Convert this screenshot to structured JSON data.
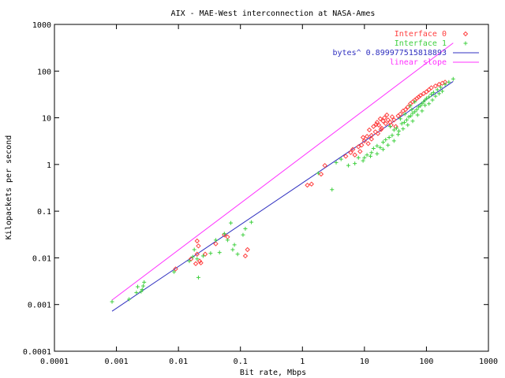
{
  "chart_data": {
    "type": "scatter",
    "title": "AIX - MAE-West interconnection at NASA-Ames",
    "xlabel": "Bit rate, Mbps",
    "ylabel": "Kilopackets per second",
    "xscale": "log",
    "yscale": "log",
    "xlim": [
      0.0001,
      1000
    ],
    "ylim": [
      0.0001,
      1000
    ],
    "grid": false,
    "legend_position": "top-right",
    "x_ticks": [
      {
        "value": 0.0001,
        "label": "0.0001"
      },
      {
        "value": 0.001,
        "label": "0.001"
      },
      {
        "value": 0.01,
        "label": "0.01"
      },
      {
        "value": 0.1,
        "label": "0.1"
      },
      {
        "value": 1,
        "label": "1"
      },
      {
        "value": 10,
        "label": "10"
      },
      {
        "value": 100,
        "label": "100"
      },
      {
        "value": 1000,
        "label": "1000"
      }
    ],
    "y_ticks": [
      {
        "value": 0.0001,
        "label": "0.0001"
      },
      {
        "value": 0.001,
        "label": "0.001"
      },
      {
        "value": 0.01,
        "label": "0.01"
      },
      {
        "value": 0.1,
        "label": "0.1"
      },
      {
        "value": 1,
        "label": "1"
      },
      {
        "value": 10,
        "label": "10"
      },
      {
        "value": 100,
        "label": "100"
      },
      {
        "value": 1000,
        "label": "1000"
      }
    ],
    "series": [
      {
        "name": "Interface 0",
        "kind": "points",
        "marker": "diamond",
        "color": "#ff4040",
        "points": [
          [
            0.009,
            0.0058
          ],
          [
            0.016,
            0.0095
          ],
          [
            0.019,
            0.0075
          ],
          [
            0.02,
            0.012
          ],
          [
            0.021,
            0.018
          ],
          [
            0.022,
            0.0085
          ],
          [
            0.023,
            0.0078
          ],
          [
            0.02,
            0.023
          ],
          [
            0.027,
            0.012
          ],
          [
            0.04,
            0.02
          ],
          [
            0.055,
            0.031
          ],
          [
            0.062,
            0.028
          ],
          [
            0.12,
            0.011
          ],
          [
            0.13,
            0.015
          ],
          [
            1.2,
            0.36
          ],
          [
            1.4,
            0.38
          ],
          [
            2.0,
            0.62
          ],
          [
            2.3,
            0.95
          ],
          [
            5.0,
            1.5
          ],
          [
            6.0,
            1.8
          ],
          [
            7.0,
            1.6
          ],
          [
            8.0,
            2.4
          ],
          [
            9.0,
            2.6
          ],
          [
            10.0,
            3.2
          ],
          [
            11.0,
            4.0
          ],
          [
            12.0,
            5.5
          ],
          [
            13.0,
            4.2
          ],
          [
            14.0,
            6.5
          ],
          [
            15.0,
            5.0
          ],
          [
            16.0,
            8.0
          ],
          [
            17.0,
            7.0
          ],
          [
            18.0,
            9.5
          ],
          [
            19.0,
            6.0
          ],
          [
            20.0,
            8.5
          ],
          [
            21.0,
            10.0
          ],
          [
            22.0,
            7.5
          ],
          [
            24.0,
            9.0
          ],
          [
            26.0,
            8.0
          ],
          [
            28.0,
            10.5
          ],
          [
            30.0,
            9.0
          ],
          [
            32.0,
            6.5
          ],
          [
            35.0,
            11.0
          ],
          [
            38.0,
            12.0
          ],
          [
            42.0,
            14.0
          ],
          [
            46.0,
            15.0
          ],
          [
            50.0,
            17.0
          ],
          [
            55.0,
            20.0
          ],
          [
            60.0,
            22.0
          ],
          [
            65.0,
            24.0
          ],
          [
            70.0,
            26.0
          ],
          [
            75.0,
            28.0
          ],
          [
            80.0,
            30.0
          ],
          [
            90.0,
            33.0
          ],
          [
            100.0,
            36.0
          ],
          [
            110.0,
            40.0
          ],
          [
            120.0,
            44.0
          ],
          [
            140.0,
            48.0
          ],
          [
            160.0,
            52.0
          ],
          [
            180.0,
            55.0
          ],
          [
            200.0,
            58.0
          ],
          [
            13.0,
            3.5
          ],
          [
            15.5,
            7.2
          ],
          [
            18.5,
            5.6
          ],
          [
            23.0,
            11.5
          ],
          [
            27.0,
            7.0
          ],
          [
            11.5,
            2.8
          ],
          [
            9.5,
            3.8
          ],
          [
            8.5,
            1.9
          ],
          [
            6.5,
            2.1
          ],
          [
            16.5,
            4.6
          ]
        ]
      },
      {
        "name": "Interface 1",
        "kind": "points",
        "marker": "plus",
        "color": "#40d040",
        "points": [
          [
            0.00085,
            0.00115
          ],
          [
            0.0016,
            0.0013
          ],
          [
            0.0021,
            0.0018
          ],
          [
            0.0022,
            0.0024
          ],
          [
            0.0025,
            0.0019
          ],
          [
            0.0027,
            0.0025
          ],
          [
            0.0028,
            0.003
          ],
          [
            0.0026,
            0.0021
          ],
          [
            0.0085,
            0.005
          ],
          [
            0.015,
            0.0085
          ],
          [
            0.017,
            0.0105
          ],
          [
            0.018,
            0.015
          ],
          [
            0.02,
            0.0095
          ],
          [
            0.021,
            0.0038
          ],
          [
            0.025,
            0.011
          ],
          [
            0.033,
            0.0125
          ],
          [
            0.04,
            0.024
          ],
          [
            0.046,
            0.013
          ],
          [
            0.055,
            0.033
          ],
          [
            0.062,
            0.024
          ],
          [
            0.07,
            0.056
          ],
          [
            0.08,
            0.019
          ],
          [
            0.09,
            0.012
          ],
          [
            0.11,
            0.031
          ],
          [
            0.12,
            0.042
          ],
          [
            0.15,
            0.058
          ],
          [
            0.075,
            0.015
          ],
          [
            1.8,
            0.65
          ],
          [
            3.0,
            0.29
          ],
          [
            3.5,
            1.1
          ],
          [
            4.2,
            1.3
          ],
          [
            5.5,
            0.95
          ],
          [
            7.0,
            1.05
          ],
          [
            8.0,
            1.4
          ],
          [
            9.5,
            1.2
          ],
          [
            11.0,
            1.6
          ],
          [
            12.5,
            1.5
          ],
          [
            14.0,
            2.2
          ],
          [
            16.0,
            2.5
          ],
          [
            18.0,
            2.3
          ],
          [
            20.0,
            3.0
          ],
          [
            22.0,
            3.4
          ],
          [
            25.0,
            3.8
          ],
          [
            28.0,
            4.2
          ],
          [
            30.0,
            5.5
          ],
          [
            33.0,
            6.0
          ],
          [
            36.0,
            5.2
          ],
          [
            40.0,
            7.5
          ],
          [
            44.0,
            8.0
          ],
          [
            48.0,
            9.0
          ],
          [
            52.0,
            10.5
          ],
          [
            56.0,
            11.0
          ],
          [
            60.0,
            12.5
          ],
          [
            65.0,
            13.5
          ],
          [
            70.0,
            15.0
          ],
          [
            75.0,
            17.0
          ],
          [
            80.0,
            18.0
          ],
          [
            85.0,
            20.0
          ],
          [
            90.0,
            22.0
          ],
          [
            95.0,
            24.0
          ],
          [
            100.0,
            26.0
          ],
          [
            110.0,
            28.0
          ],
          [
            120.0,
            32.0
          ],
          [
            130.0,
            35.0
          ],
          [
            150.0,
            40.0
          ],
          [
            170.0,
            45.0
          ],
          [
            200.0,
            52.0
          ],
          [
            230.0,
            58.0
          ],
          [
            270.0,
            68.0
          ],
          [
            45.0,
            12.0
          ],
          [
            55.0,
            18.0
          ],
          [
            65.0,
            22.0
          ],
          [
            38.0,
            9.5
          ],
          [
            26.0,
            6.5
          ],
          [
            30.0,
            3.2
          ],
          [
            35.0,
            4.4
          ],
          [
            42.0,
            5.8
          ],
          [
            50.0,
            7.0
          ],
          [
            60.0,
            8.5
          ],
          [
            58.0,
            15.0
          ],
          [
            72.0,
            11.5
          ],
          [
            85.0,
            14.0
          ],
          [
            95.0,
            18.5
          ],
          [
            110.0,
            20.0
          ],
          [
            125.0,
            24.0
          ],
          [
            140.0,
            29.0
          ],
          [
            160.0,
            33.0
          ],
          [
            180.0,
            37.0
          ],
          [
            16.0,
            1.7
          ],
          [
            20.0,
            2.1
          ],
          [
            24.0,
            2.6
          ],
          [
            10.0,
            1.4
          ],
          [
            13.0,
            1.8
          ]
        ]
      },
      {
        "name": "bytes^ 0.899977515818893",
        "kind": "line",
        "color": "#3030c0",
        "function": "power",
        "exponent": 0.899977515818893,
        "x_range": [
          0.00085,
          270
        ],
        "endpoints": [
          [
            0.00085,
            0.00072
          ],
          [
            270,
            60
          ]
        ]
      },
      {
        "name": "linear slope",
        "kind": "line",
        "color": "#ff30ff",
        "function": "power",
        "exponent": 1.0,
        "x_range": [
          0.00085,
          270
        ],
        "endpoints": [
          [
            0.00085,
            0.00125
          ],
          [
            270,
            400
          ]
        ]
      }
    ]
  }
}
